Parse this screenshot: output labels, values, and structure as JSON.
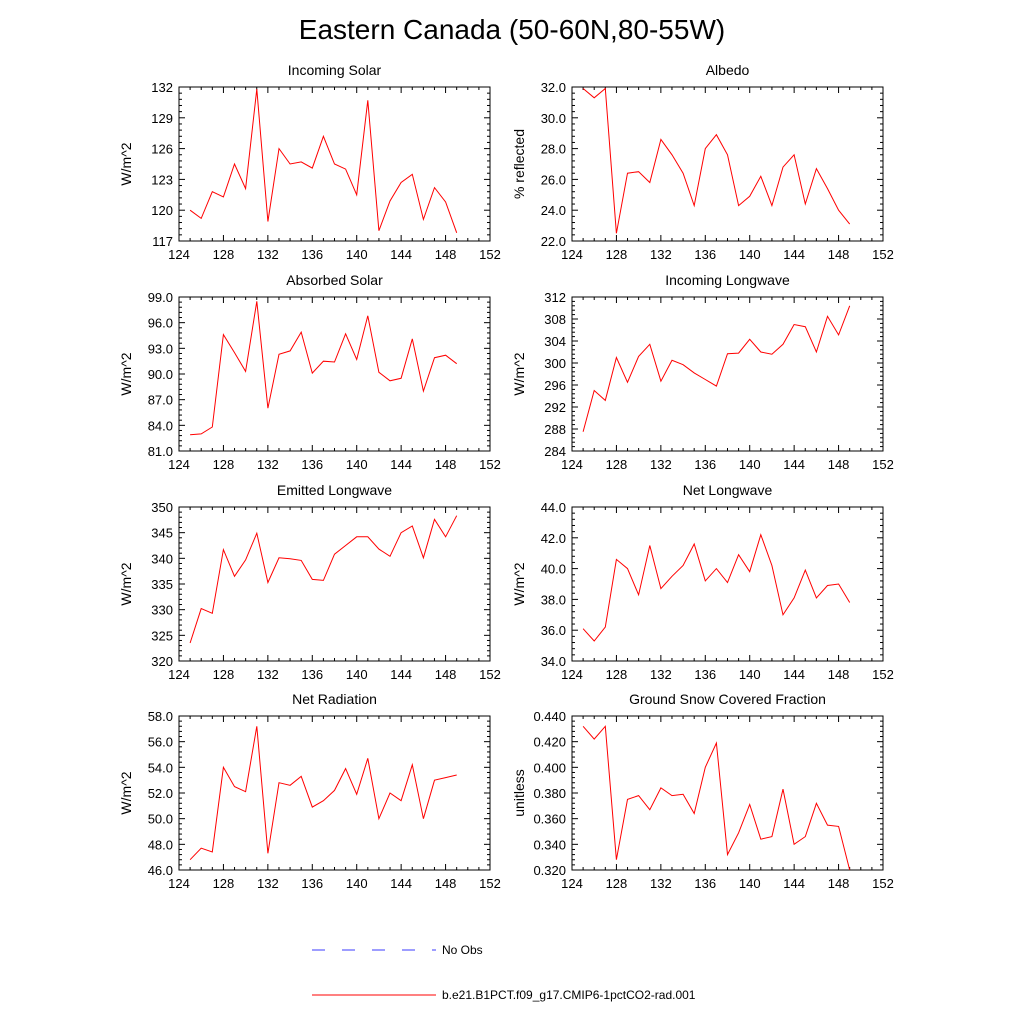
{
  "title": "Eastern Canada (50-60N,80-55W)",
  "colors": {
    "model": "#ff0000",
    "obs": "#3b3bff",
    "axis": "#000000"
  },
  "legend": {
    "obs_label": "No Obs",
    "model_label": "b.e21.B1PCT.f09_g17.CMIP6-1pctCO2-rad.001"
  },
  "chart_data": [
    {
      "type": "line",
      "title": "Incoming Solar",
      "ylabel": "W/m^2",
      "xlim": [
        124,
        152
      ],
      "ylim": [
        117,
        132
      ],
      "xticks": [
        124,
        128,
        132,
        136,
        140,
        144,
        148,
        152
      ],
      "yticks": [
        "117",
        "120",
        "123",
        "126",
        "129",
        "132"
      ],
      "x": [
        125,
        126,
        127,
        128,
        129,
        130,
        131,
        132,
        133,
        134,
        135,
        136,
        137,
        138,
        139,
        140,
        141,
        142,
        143,
        144,
        145,
        146,
        147,
        148,
        149
      ],
      "y": [
        120.0,
        119.2,
        121.8,
        121.3,
        124.5,
        122.1,
        131.8,
        118.9,
        126.0,
        124.5,
        124.7,
        124.1,
        127.2,
        124.5,
        124.0,
        121.5,
        130.7,
        118.0,
        120.9,
        122.7,
        123.5,
        119.1,
        122.2,
        120.8,
        117.8
      ]
    },
    {
      "type": "line",
      "title": "Albedo",
      "ylabel": "% reflected",
      "xlim": [
        124,
        152
      ],
      "ylim": [
        22.0,
        32.0
      ],
      "xticks": [
        124,
        128,
        132,
        136,
        140,
        144,
        148,
        152
      ],
      "yticks": [
        "22.0",
        "24.0",
        "26.0",
        "28.0",
        "30.0",
        "32.0"
      ],
      "x": [
        125,
        126,
        127,
        128,
        129,
        130,
        131,
        132,
        133,
        134,
        135,
        136,
        137,
        138,
        139,
        140,
        141,
        142,
        143,
        144,
        145,
        146,
        147,
        148,
        149
      ],
      "y": [
        31.9,
        31.3,
        31.9,
        22.5,
        26.4,
        26.5,
        25.8,
        28.6,
        27.6,
        26.4,
        24.3,
        28.0,
        28.9,
        27.6,
        24.3,
        24.9,
        26.2,
        24.3,
        26.8,
        27.6,
        24.4,
        26.7,
        25.4,
        24.0,
        23.1
      ]
    },
    {
      "type": "line",
      "title": "Absorbed Solar",
      "ylabel": "W/m^2",
      "xlim": [
        124,
        152
      ],
      "ylim": [
        81.0,
        99.0
      ],
      "xticks": [
        124,
        128,
        132,
        136,
        140,
        144,
        148,
        152
      ],
      "yticks": [
        "81.0",
        "84.0",
        "87.0",
        "90.0",
        "93.0",
        "96.0",
        "99.0"
      ],
      "x": [
        125,
        126,
        127,
        128,
        129,
        130,
        131,
        132,
        133,
        134,
        135,
        136,
        137,
        138,
        139,
        140,
        141,
        142,
        143,
        144,
        145,
        146,
        147,
        148,
        149
      ],
      "y": [
        82.9,
        83.0,
        83.8,
        94.6,
        92.5,
        90.3,
        98.5,
        86.0,
        92.3,
        92.7,
        94.9,
        90.1,
        91.5,
        91.4,
        94.7,
        91.7,
        96.8,
        90.2,
        89.2,
        89.5,
        94.1,
        88.0,
        91.9,
        92.2,
        91.2
      ]
    },
    {
      "type": "line",
      "title": "Incoming Longwave",
      "ylabel": "W/m^2",
      "xlim": [
        124,
        152
      ],
      "ylim": [
        284,
        312
      ],
      "xticks": [
        124,
        128,
        132,
        136,
        140,
        144,
        148,
        152
      ],
      "yticks": [
        "284",
        "288",
        "292",
        "296",
        "300",
        "304",
        "308",
        "312"
      ],
      "x": [
        125,
        126,
        127,
        128,
        129,
        130,
        131,
        132,
        133,
        134,
        135,
        136,
        137,
        138,
        139,
        140,
        141,
        142,
        143,
        144,
        145,
        146,
        147,
        148,
        149
      ],
      "y": [
        287.5,
        295.0,
        293.2,
        301.0,
        296.5,
        301.2,
        303.4,
        296.7,
        300.5,
        299.7,
        298.2,
        297.0,
        295.8,
        301.7,
        301.8,
        304.3,
        302.0,
        301.6,
        303.4,
        307.0,
        306.6,
        302.0,
        308.5,
        305.1,
        310.4
      ]
    },
    {
      "type": "line",
      "title": "Emitted Longwave",
      "ylabel": "W/m^2",
      "xlim": [
        124,
        152
      ],
      "ylim": [
        320,
        350
      ],
      "xticks": [
        124,
        128,
        132,
        136,
        140,
        144,
        148,
        152
      ],
      "yticks": [
        "320",
        "325",
        "330",
        "335",
        "340",
        "345",
        "350"
      ],
      "x": [
        125,
        126,
        127,
        128,
        129,
        130,
        131,
        132,
        133,
        134,
        135,
        136,
        137,
        138,
        139,
        140,
        141,
        142,
        143,
        144,
        145,
        146,
        147,
        148,
        149
      ],
      "y": [
        323.5,
        330.2,
        329.3,
        341.7,
        336.5,
        339.7,
        344.9,
        335.3,
        340.1,
        339.9,
        339.6,
        335.9,
        335.7,
        340.8,
        342.5,
        344.2,
        344.2,
        341.8,
        340.4,
        345.0,
        346.3,
        340.1,
        347.6,
        344.2,
        348.3
      ]
    },
    {
      "type": "line",
      "title": "Net Longwave",
      "ylabel": "W/m^2",
      "xlim": [
        124,
        152
      ],
      "ylim": [
        34.0,
        44.0
      ],
      "xticks": [
        124,
        128,
        132,
        136,
        140,
        144,
        148,
        152
      ],
      "yticks": [
        "34.0",
        "36.0",
        "38.0",
        "40.0",
        "42.0",
        "44.0"
      ],
      "x": [
        125,
        126,
        127,
        128,
        129,
        130,
        131,
        132,
        133,
        134,
        135,
        136,
        137,
        138,
        139,
        140,
        141,
        142,
        143,
        144,
        145,
        146,
        147,
        148,
        149
      ],
      "y": [
        36.1,
        35.3,
        36.2,
        40.6,
        40.0,
        38.3,
        41.5,
        38.7,
        39.5,
        40.2,
        41.6,
        39.2,
        40.0,
        39.1,
        40.9,
        39.8,
        42.2,
        40.2,
        37.0,
        38.1,
        39.9,
        38.1,
        38.9,
        39.0,
        37.8
      ]
    },
    {
      "type": "line",
      "title": "Net Radiation",
      "ylabel": "W/m^2",
      "xlim": [
        124,
        152
      ],
      "ylim": [
        46.0,
        58.0
      ],
      "xticks": [
        124,
        128,
        132,
        136,
        140,
        144,
        148,
        152
      ],
      "yticks": [
        "46.0",
        "48.0",
        "50.0",
        "52.0",
        "54.0",
        "56.0",
        "58.0"
      ],
      "x": [
        125,
        126,
        127,
        128,
        129,
        130,
        131,
        132,
        133,
        134,
        135,
        136,
        137,
        138,
        139,
        140,
        141,
        142,
        143,
        144,
        145,
        146,
        147,
        148,
        149
      ],
      "y": [
        46.8,
        47.7,
        47.4,
        54.0,
        52.5,
        52.1,
        57.2,
        47.3,
        52.8,
        52.6,
        53.3,
        50.9,
        51.4,
        52.2,
        53.9,
        51.9,
        54.7,
        50.0,
        52.0,
        51.4,
        54.2,
        50.0,
        53.0,
        53.2,
        53.4
      ]
    },
    {
      "type": "line",
      "title": "Ground Snow Covered Fraction",
      "ylabel": "unitless",
      "xlim": [
        124,
        152
      ],
      "ylim": [
        0.32,
        0.44
      ],
      "xticks": [
        124,
        128,
        132,
        136,
        140,
        144,
        148,
        152
      ],
      "yticks": [
        "0.320",
        "0.340",
        "0.360",
        "0.380",
        "0.400",
        "0.420",
        "0.440"
      ],
      "x": [
        125,
        126,
        127,
        128,
        129,
        130,
        131,
        132,
        133,
        134,
        135,
        136,
        137,
        138,
        139,
        140,
        141,
        142,
        143,
        144,
        145,
        146,
        147,
        148,
        149
      ],
      "y": [
        0.432,
        0.422,
        0.432,
        0.328,
        0.375,
        0.378,
        0.367,
        0.384,
        0.378,
        0.379,
        0.364,
        0.4,
        0.419,
        0.332,
        0.349,
        0.371,
        0.344,
        0.346,
        0.383,
        0.34,
        0.346,
        0.372,
        0.355,
        0.354,
        0.32
      ]
    }
  ]
}
